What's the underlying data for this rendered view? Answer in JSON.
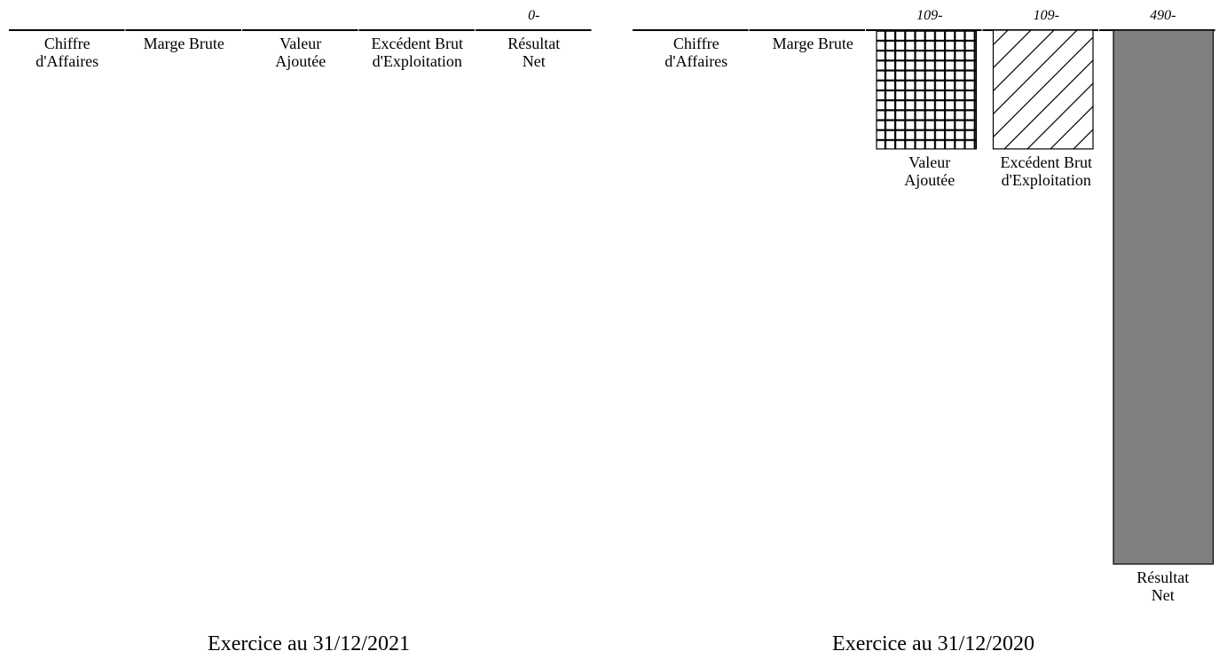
{
  "chart_data": [
    {
      "type": "bar",
      "title": "",
      "caption": "Exercice au 31/12/2021",
      "categories": [
        "Chiffre d'Affaires",
        "Marge Brute",
        "Valeur Ajoutée",
        "Excédent Brut d'Exploitation",
        "Résultat Net"
      ],
      "values": [
        null,
        null,
        null,
        null,
        0
      ],
      "value_labels": [
        "",
        "",
        "",
        "",
        "0-"
      ],
      "ylim": [
        -490,
        0
      ],
      "grid": false,
      "legend": "none"
    },
    {
      "type": "bar",
      "title": "",
      "caption": "Exercice au 31/12/2020",
      "categories": [
        "Chiffre d'Affaires",
        "Marge Brute",
        "Valeur Ajoutée",
        "Excédent Brut d'Exploitation",
        "Résultat Net"
      ],
      "values": [
        null,
        null,
        -109,
        -109,
        -490
      ],
      "value_labels": [
        "",
        "",
        "109-",
        "109-",
        "490-"
      ],
      "ylim": [
        -490,
        0
      ],
      "grid": false,
      "legend": "none"
    }
  ],
  "colors": {
    "bar_outline": "#000000",
    "resultat_net_fill": "#808080",
    "axis_line": "#000000"
  },
  "patterns": [
    "none",
    "none",
    "crosshatch-grid",
    "diagonal-hatch",
    "solid-gray"
  ]
}
